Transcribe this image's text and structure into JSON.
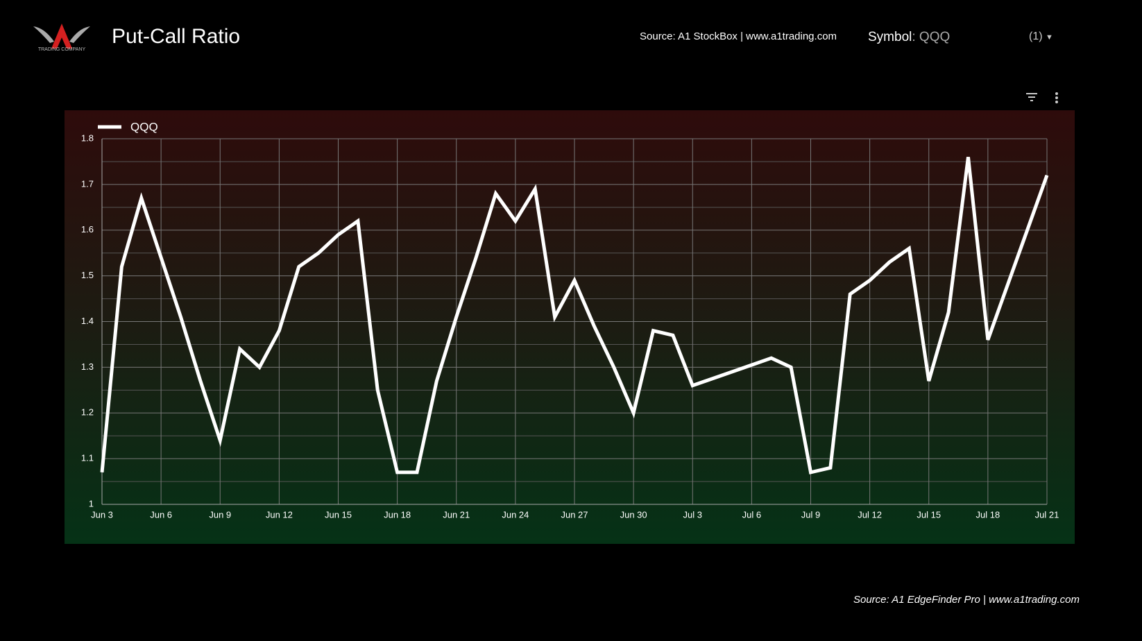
{
  "header": {
    "logo_text": "TRADING COMPANY",
    "title": "Put-Call Ratio",
    "source": "Source: A1 StockBox | www.a1trading.com",
    "symbol_label": "Symbol",
    "symbol_value": ": QQQ",
    "selector": "(1)"
  },
  "chart_data": {
    "type": "line",
    "categories": [
      "Jun 3",
      null,
      null,
      "Jun 6",
      null,
      null,
      "Jun 9",
      null,
      null,
      "Jun 12",
      null,
      null,
      "Jun 15",
      null,
      null,
      "Jun 18",
      null,
      null,
      "Jun 21",
      null,
      null,
      "Jun 24",
      null,
      null,
      "Jun 27",
      null,
      null,
      "Jun 30",
      null,
      null,
      "Jul 3",
      null,
      null,
      "Jul 6",
      null,
      null,
      "Jul 9",
      null,
      null,
      "Jul 12",
      null,
      null,
      "Jul 15",
      null,
      null,
      "Jul 18",
      null,
      null,
      "Jul 21"
    ],
    "series": [
      {
        "name": "QQQ",
        "color": "#ffffff",
        "values": [
          1.07,
          1.52,
          1.67,
          1.54,
          1.41,
          1.27,
          1.14,
          1.34,
          1.3,
          1.38,
          1.52,
          1.55,
          1.59,
          1.62,
          1.25,
          1.07,
          1.07,
          1.27,
          1.41,
          1.54,
          1.68,
          1.62,
          1.69,
          1.41,
          1.49,
          1.39,
          1.3,
          1.2,
          1.38,
          1.37,
          1.26,
          1.275,
          1.29,
          1.305,
          1.32,
          1.3,
          1.07,
          1.08,
          1.46,
          1.49,
          1.53,
          1.56,
          1.27,
          1.42,
          1.76,
          1.36,
          1.48,
          1.6,
          1.72
        ]
      }
    ],
    "ylim": [
      1,
      1.8
    ],
    "yticks": [
      1,
      1.1,
      1.2,
      1.3,
      1.4,
      1.5,
      1.6,
      1.7,
      1.8
    ],
    "grid": true,
    "legend": "top-left"
  },
  "footer": {
    "source": "Source: A1 EdgeFinder Pro | www.a1trading.com"
  }
}
